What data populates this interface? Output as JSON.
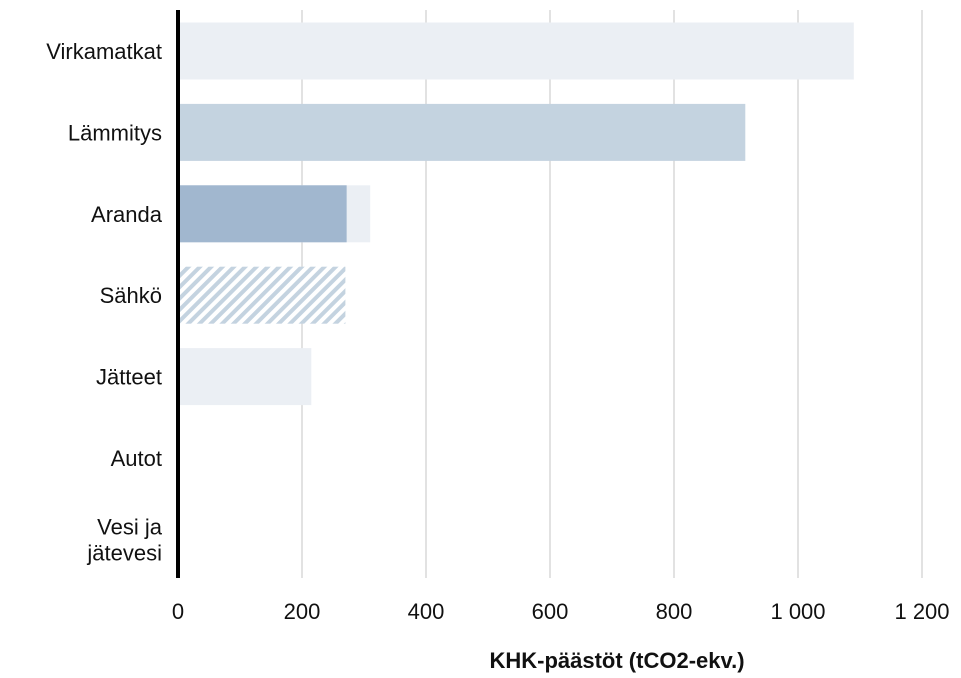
{
  "chart_data": {
    "type": "bar",
    "orientation": "horizontal",
    "categories": [
      "Virkamatkat",
      "Lämmitys",
      "Aranda",
      "Sähkö",
      "Jätteet",
      "Autot",
      "Vesi ja jätevesi"
    ],
    "category_lines": [
      [
        "Virkamatkat"
      ],
      [
        "Lämmitys"
      ],
      [
        "Aranda"
      ],
      [
        "Sähkö"
      ],
      [
        "Jätteet"
      ],
      [
        "Autot"
      ],
      [
        "Vesi ja",
        "jätevesi"
      ]
    ],
    "bars": [
      {
        "category": "Virkamatkat",
        "value": 1090,
        "color": "#ebeff4",
        "pattern": "solid"
      },
      {
        "category": "Lämmitys",
        "value": 915,
        "color": "#c4d3e0",
        "pattern": "solid"
      },
      {
        "category": "Aranda",
        "value": 310,
        "color": "#ebeff4",
        "pattern": "solid"
      },
      {
        "category": "Aranda",
        "value": 272,
        "color": "#a1b7cf",
        "pattern": "solid"
      },
      {
        "category": "Sähkö",
        "value": 270,
        "color": "#c4d3e0",
        "pattern": "hatched"
      },
      {
        "category": "Jätteet",
        "value": 215,
        "color": "#ebeff4",
        "pattern": "solid"
      },
      {
        "category": "Autot",
        "value": 0,
        "color": "#ebeff4",
        "pattern": "solid"
      },
      {
        "category": "Vesi ja jätevesi",
        "value": 0,
        "color": "#ebeff4",
        "pattern": "solid"
      }
    ],
    "x_ticks": [
      0,
      200,
      400,
      600,
      800,
      1000,
      1200
    ],
    "x_tick_labels": [
      "0",
      "200",
      "400",
      "600",
      "800",
      "1 000",
      "1 200"
    ],
    "xlim": [
      0,
      1200
    ],
    "xlabel": "KHK-päästöt (tCO2-ekv.)",
    "ylabel": "",
    "title": "",
    "grid": "vertical",
    "legend": "none",
    "colors": {
      "gridline": "#d9d9d9",
      "axis": "#000000"
    }
  }
}
